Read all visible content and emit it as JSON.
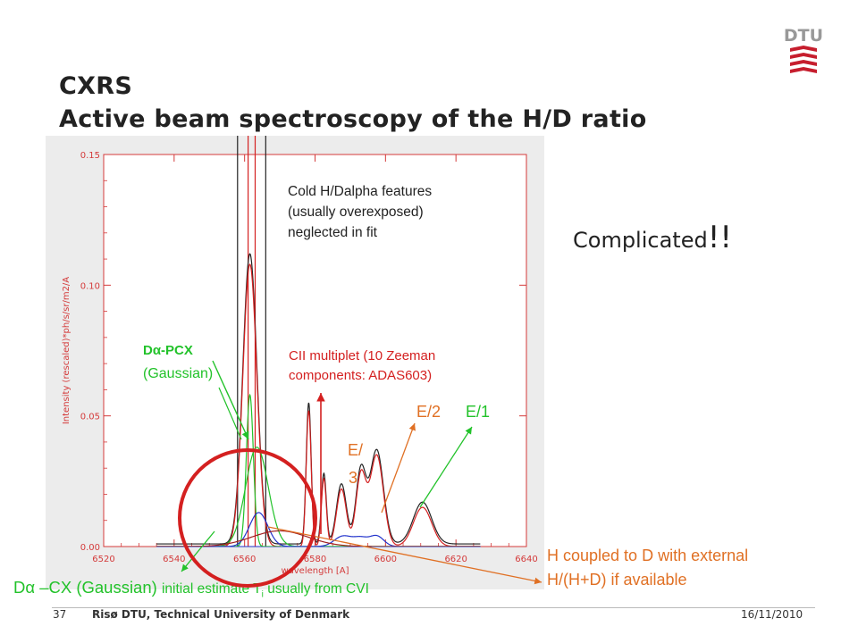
{
  "slide": {
    "title_line1": "CXRS",
    "title_line2": "Active beam spectroscopy of the H/D ratio",
    "complicated": "Complicated",
    "complicated_bang": "!!",
    "footer_page": "37",
    "footer_org": "Risø DTU, Technical University of Denmark",
    "footer_date": "16/11/2010",
    "logo_text": "DTU"
  },
  "annotations": {
    "cold_line1": "Cold H/Dalpha features",
    "cold_line2": "(usually overexposed)",
    "cold_line3": "neglected in fit",
    "dpcx_line1": "Dα-PCX",
    "dpcx_line2": "(Gaussian)",
    "cii_line1": "CII multiplet (10 Zeeman",
    "cii_line2": "components: ADAS603)",
    "e2": "E/2",
    "e1": "E/1",
    "e3_line1": "E/",
    "e3_line2": "3",
    "hcoupled_line1": "H coupled to D with external",
    "hcoupled_line2": "H/(H+D) if available",
    "dcx_main": "Dα –CX (Gaussian) ",
    "dcx_small": "initial estimate T",
    "dcx_sub": "i",
    "dcx_tail": " usually from CVI"
  },
  "colors": {
    "green": "#22c22a",
    "red": "#d42020",
    "orange": "#e07024",
    "blue": "#2233cc",
    "axis_red": "#d43a3a",
    "logo": "#c61e2e"
  },
  "chart_data": {
    "type": "line",
    "xlabel": "wavelength [A]",
    "ylabel": "Intensity (rescaled)*ph/s/sr/m2/A",
    "xlim": [
      6520,
      6640
    ],
    "ylim": [
      0,
      0.15
    ],
    "xticks": [
      "6520",
      "6540",
      "6560",
      "6580",
      "6600",
      "6620",
      "6640"
    ],
    "yticks": [
      "0.00",
      "0.05",
      "0.10",
      "0.15"
    ],
    "series": [
      {
        "color": "#222222",
        "peaks": [
          [
            6561.5,
            0.111,
            2.0
          ],
          [
            6578.2,
            0.054,
            0.7
          ],
          [
            6582.5,
            0.027,
            0.7
          ],
          [
            6587.5,
            0.023,
            1.4
          ],
          [
            6593.0,
            0.028,
            1.4
          ],
          [
            6597.5,
            0.036,
            1.9
          ],
          [
            6610.5,
            0.016,
            2.6
          ]
        ],
        "base": 0.001
      },
      {
        "color": "#d42020",
        "peaks": [
          [
            6561.5,
            0.108,
            2.0
          ],
          [
            6578.2,
            0.052,
            0.7
          ],
          [
            6582.5,
            0.026,
            0.7
          ],
          [
            6587.5,
            0.022,
            1.4
          ],
          [
            6593.0,
            0.027,
            1.4
          ],
          [
            6597.5,
            0.035,
            1.9
          ],
          [
            6610.5,
            0.015,
            2.6
          ]
        ],
        "base": 0.0
      },
      {
        "color": "#22c22a",
        "peaks": [
          [
            6561.5,
            0.058,
            1.0
          ]
        ],
        "base": 0.0
      },
      {
        "color": "#22c22a",
        "peaks": [
          [
            6563.5,
            0.038,
            3.2
          ]
        ],
        "base": 0.0
      },
      {
        "color": "#2233cc",
        "peaks": [
          [
            6564.0,
            0.013,
            2.6
          ],
          [
            6588.0,
            0.004,
            2.5
          ],
          [
            6593.0,
            0.003,
            2.0
          ],
          [
            6597.5,
            0.004,
            2.0
          ]
        ],
        "base": 0.0
      },
      {
        "color": "#a02020",
        "peaks": [
          [
            6570.0,
            0.006,
            8.0
          ]
        ],
        "base": 0.0
      }
    ]
  }
}
